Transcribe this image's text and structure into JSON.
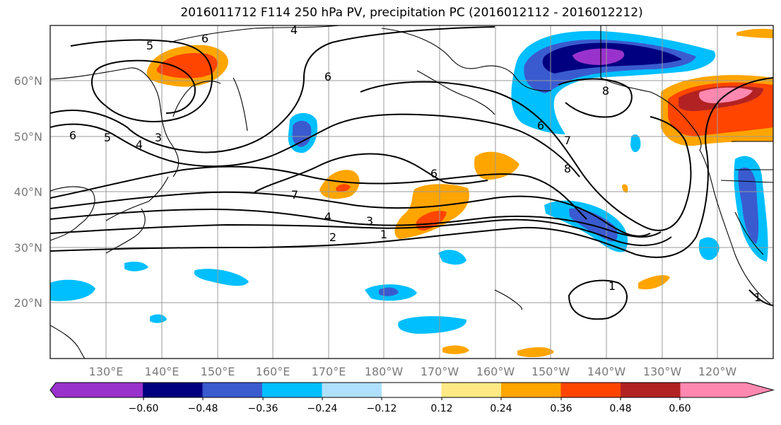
{
  "title": "2016011712 F114 250 hPa PV, precipitation PC (2016012112 - 2016012212)",
  "lon_labels": [
    "130°E",
    "140°E",
    "150°E",
    "160°E",
    "170°E",
    "180°W",
    "170°W",
    "160°W",
    "150°W",
    "140°W",
    "130°W",
    "120°W"
  ],
  "lat_labels": [
    "60°N",
    "50°N",
    "40°N",
    "30°N",
    "20°N"
  ],
  "colorbar": {
    "colors": [
      "#9932cc",
      "#000080",
      "#3a5bd0",
      "#00bfff",
      "#b0e0ff",
      "#ffffff",
      "#ffe985",
      "#ffa500",
      "#ff4500",
      "#b22222",
      "#ff88b0"
    ],
    "tick_labels": [
      "−0.60",
      "−0.48",
      "−0.36",
      "−0.24",
      "−0.12",
      "0.12",
      "0.24",
      "0.36",
      "0.48",
      "0.60"
    ]
  },
  "contour_labels": [
    "6",
    "4",
    "5",
    "6",
    "6",
    "5",
    "4",
    "3",
    "7",
    "6",
    "4",
    "3",
    "2",
    "1",
    "6",
    "7",
    "8",
    "8",
    "1",
    "1"
  ],
  "colors": {
    "grid": "#999999",
    "coast": "#000000",
    "contour": "#000000"
  }
}
